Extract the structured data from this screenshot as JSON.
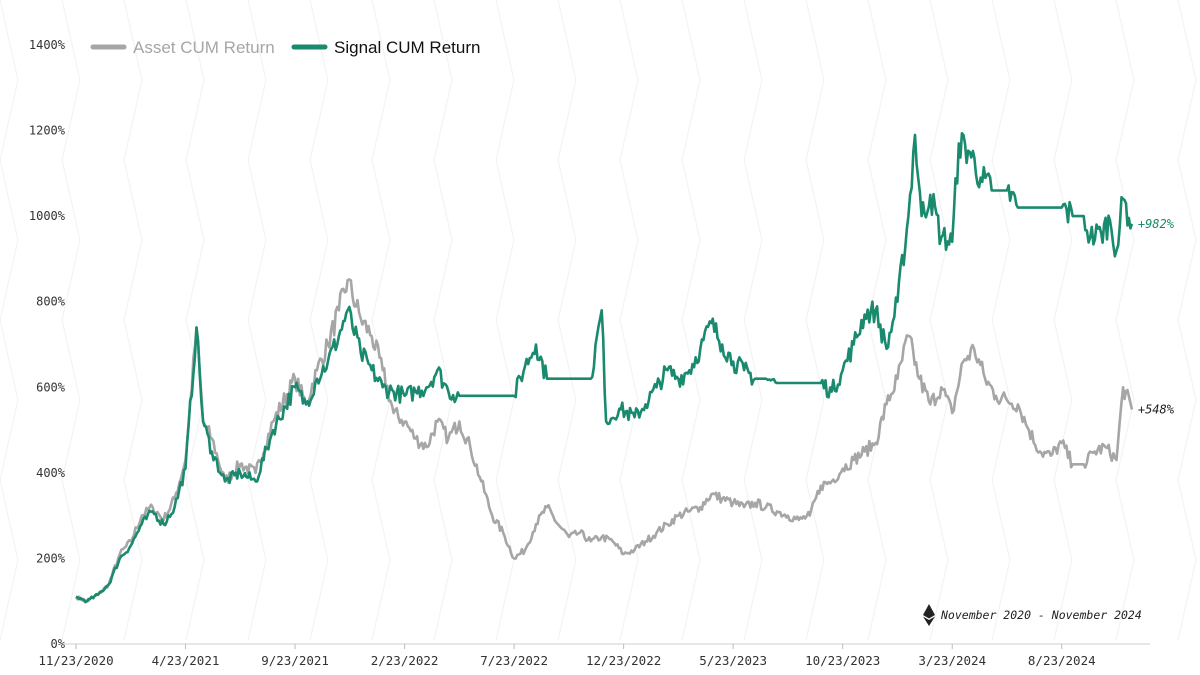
{
  "chart_data": {
    "type": "line",
    "title": "",
    "xlabel": "",
    "ylabel": "",
    "ylim": [
      0,
      1400
    ],
    "yticks": [
      0,
      200,
      400,
      600,
      800,
      1000,
      1200,
      1400
    ],
    "ytick_labels": [
      "0%",
      "200%",
      "400%",
      "600%",
      "800%",
      "1000%",
      "1200%",
      "1400%"
    ],
    "xtick_labels": [
      "11/23/2020",
      "4/23/2021",
      "9/23/2021",
      "2/23/2022",
      "7/23/2022",
      "12/23/2022",
      "5/23/2023",
      "10/23/2023",
      "3/23/2024",
      "8/23/2024"
    ],
    "x_range_months": [
      0,
      48.8
    ],
    "grid": true,
    "legend_position": "top-left",
    "note": "November 2020 - November 2024",
    "series": [
      {
        "name": "Asset CUM Return",
        "color": "#a6a6a6",
        "end_label": "+548%",
        "end_label_color": "#222222",
        "points": [
          [
            0,
            110
          ],
          [
            0.5,
            100
          ],
          [
            1,
            115
          ],
          [
            1.5,
            140
          ],
          [
            2,
            210
          ],
          [
            2.5,
            240
          ],
          [
            3,
            300
          ],
          [
            3.5,
            320
          ],
          [
            4,
            290
          ],
          [
            4.5,
            340
          ],
          [
            5,
            430
          ],
          [
            5.5,
            740
          ],
          [
            5.8,
            520
          ],
          [
            6.2,
            480
          ],
          [
            6.8,
            380
          ],
          [
            7.5,
            420
          ],
          [
            8.2,
            400
          ],
          [
            9,
            520
          ],
          [
            10,
            620
          ],
          [
            10.5,
            560
          ],
          [
            11,
            640
          ],
          [
            11.5,
            700
          ],
          [
            12,
            780
          ],
          [
            12.4,
            850
          ],
          [
            13,
            760
          ],
          [
            13.5,
            720
          ],
          [
            14,
            640
          ],
          [
            14.5,
            540
          ],
          [
            15,
            520
          ],
          [
            15.5,
            480
          ],
          [
            16,
            460
          ],
          [
            16.5,
            520
          ],
          [
            17,
            480
          ],
          [
            17.5,
            520
          ],
          [
            18,
            460
          ],
          [
            18.5,
            380
          ],
          [
            19,
            300
          ],
          [
            19.5,
            260
          ],
          [
            20,
            200
          ],
          [
            20.5,
            220
          ],
          [
            21,
            280
          ],
          [
            21.5,
            320
          ],
          [
            22,
            280
          ],
          [
            22.5,
            250
          ],
          [
            23,
            260
          ],
          [
            23.5,
            240
          ],
          [
            24,
            250
          ],
          [
            24.5,
            240
          ],
          [
            25,
            210
          ],
          [
            25.5,
            220
          ],
          [
            26,
            240
          ],
          [
            26.5,
            260
          ],
          [
            27,
            280
          ],
          [
            27.5,
            300
          ],
          [
            28,
            310
          ],
          [
            28.5,
            320
          ],
          [
            29,
            350
          ],
          [
            29.5,
            340
          ],
          [
            30,
            330
          ],
          [
            30.5,
            320
          ],
          [
            31,
            330
          ],
          [
            31.5,
            320
          ],
          [
            32,
            310
          ],
          [
            32.5,
            300
          ],
          [
            33,
            290
          ],
          [
            33.5,
            300
          ],
          [
            34,
            370
          ],
          [
            34.5,
            380
          ],
          [
            35,
            410
          ],
          [
            35.5,
            430
          ],
          [
            36,
            450
          ],
          [
            36.5,
            470
          ],
          [
            37,
            560
          ],
          [
            37.5,
            620
          ],
          [
            38,
            720
          ],
          [
            38.5,
            620
          ],
          [
            39,
            560
          ],
          [
            39.5,
            600
          ],
          [
            40,
            540
          ],
          [
            40.5,
            660
          ],
          [
            41,
            690
          ],
          [
            41.5,
            620
          ],
          [
            42,
            580
          ],
          [
            42.5,
            570
          ],
          [
            43,
            560
          ],
          [
            43.5,
            500
          ],
          [
            44,
            450
          ],
          [
            44.5,
            440
          ],
          [
            45,
            470
          ],
          [
            45.5,
            420
          ],
          [
            46,
            420
          ],
          [
            46.5,
            450
          ],
          [
            47,
            460
          ],
          [
            47.5,
            430
          ],
          [
            47.8,
            600
          ],
          [
            48.2,
            548
          ]
        ]
      },
      {
        "name": "Signal CUM Return",
        "color": "#1a8a6e",
        "end_label": "+982%",
        "end_label_color": "#1a8a6e",
        "points": [
          [
            0,
            110
          ],
          [
            0.5,
            100
          ],
          [
            1,
            115
          ],
          [
            1.5,
            140
          ],
          [
            2,
            200
          ],
          [
            2.5,
            230
          ],
          [
            3,
            280
          ],
          [
            3.5,
            310
          ],
          [
            4,
            280
          ],
          [
            4.5,
            320
          ],
          [
            5,
            410
          ],
          [
            5.5,
            740
          ],
          [
            5.8,
            520
          ],
          [
            6.2,
            450
          ],
          [
            6.8,
            380
          ],
          [
            7.5,
            400
          ],
          [
            8.2,
            380
          ],
          [
            9,
            500
          ],
          [
            10,
            600
          ],
          [
            10.5,
            560
          ],
          [
            11,
            620
          ],
          [
            11.5,
            660
          ],
          [
            12,
            720
          ],
          [
            12.4,
            780
          ],
          [
            13,
            680
          ],
          [
            13.5,
            640
          ],
          [
            14,
            600
          ],
          [
            14.5,
            590
          ],
          [
            15,
            580
          ],
          [
            15.5,
            590
          ],
          [
            16,
            600
          ],
          [
            16.5,
            640
          ],
          [
            17,
            590
          ],
          [
            17.5,
            580
          ],
          [
            18,
            580
          ],
          [
            20,
            580
          ],
          [
            20.5,
            650
          ],
          [
            21,
            700
          ],
          [
            21.5,
            620
          ],
          [
            22,
            620
          ],
          [
            23.5,
            620
          ],
          [
            24,
            780
          ],
          [
            24.2,
            520
          ],
          [
            24.8,
            550
          ],
          [
            25.5,
            530
          ],
          [
            26,
            560
          ],
          [
            26.5,
            600
          ],
          [
            27,
            640
          ],
          [
            27.5,
            620
          ],
          [
            28,
            640
          ],
          [
            28.5,
            690
          ],
          [
            29,
            750
          ],
          [
            29.5,
            700
          ],
          [
            30,
            660
          ],
          [
            30.5,
            640
          ],
          [
            31,
            620
          ],
          [
            31.5,
            620
          ],
          [
            32,
            610
          ],
          [
            34,
            610
          ],
          [
            34.5,
            590
          ],
          [
            35,
            640
          ],
          [
            35.5,
            700
          ],
          [
            36,
            770
          ],
          [
            36.5,
            780
          ],
          [
            37,
            690
          ],
          [
            37.5,
            800
          ],
          [
            38,
            1000
          ],
          [
            38.3,
            1190
          ],
          [
            38.6,
            1000
          ],
          [
            39,
            1050
          ],
          [
            39.5,
            950
          ],
          [
            40,
            940
          ],
          [
            40.3,
            1170
          ],
          [
            40.8,
            1150
          ],
          [
            41.3,
            1090
          ],
          [
            41.8,
            1060
          ],
          [
            42.5,
            1060
          ],
          [
            43,
            1020
          ],
          [
            45,
            1020
          ],
          [
            45.5,
            1000
          ],
          [
            46,
            1000
          ],
          [
            46.3,
            950
          ],
          [
            46.8,
            960
          ],
          [
            47.2,
            990
          ],
          [
            47.5,
            920
          ],
          [
            47.8,
            1040
          ],
          [
            48.2,
            982
          ]
        ]
      }
    ]
  }
}
